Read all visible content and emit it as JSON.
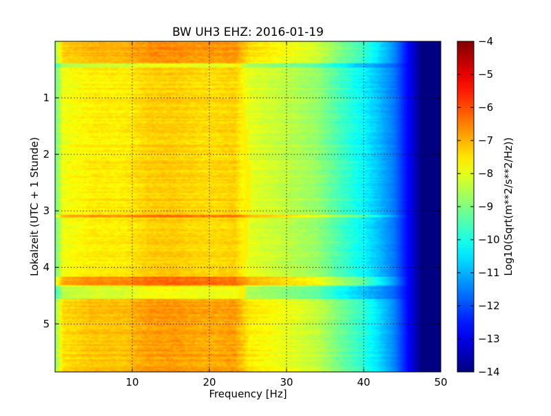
{
  "chart_data": {
    "type": "heatmap",
    "title": "BW UH3 EHZ: 2016-01-19",
    "xlabel": "Frequency [Hz]",
    "ylabel": "Lokalzeit (UTC + 1 Stunde)",
    "xlim": [
      0,
      50
    ],
    "ylim": [
      5.85,
      0
    ],
    "x_ticks": [
      10,
      20,
      30,
      40,
      50
    ],
    "y_ticks": [
      1,
      2,
      3,
      4,
      5
    ],
    "grid": true,
    "colormap": "jet",
    "colorbar": {
      "label": "Log10(Sqrt(m**2/s**2/Hz))",
      "range": [
        -14,
        -4
      ],
      "ticks": [
        -4,
        -5,
        -6,
        -7,
        -8,
        -9,
        -10,
        -11,
        -12,
        -13,
        -14
      ]
    },
    "baseline_spectrum": {
      "freq_hz": [
        0,
        1,
        5,
        9,
        12,
        15,
        19,
        21,
        23.3,
        25,
        30,
        34,
        37,
        40,
        42,
        44,
        46,
        47.5,
        50
      ],
      "value": [
        -9.3,
        -7.9,
        -7.6,
        -7.6,
        -7.3,
        -7.25,
        -7.4,
        -7.4,
        -7.3,
        -8.0,
        -8.4,
        -8.8,
        -9.6,
        -10.3,
        -10.9,
        -11.6,
        -12.9,
        -14,
        -14
      ]
    },
    "events": [
      {
        "start": 0.0,
        "end": 0.38,
        "delta": 0.55
      },
      {
        "start": 3.06,
        "end": 3.12,
        "delta": 0.9
      },
      {
        "start": 4.16,
        "end": 4.31,
        "delta": 1.0
      },
      {
        "start": 4.57,
        "end": 5.85,
        "delta": 0.45
      }
    ],
    "quiet_bands": [
      {
        "start": 0.38,
        "end": 0.46,
        "delta": -0.6
      },
      {
        "start": 4.34,
        "end": 4.55,
        "delta": -0.5
      }
    ],
    "narrowband_line_hz": [
      23.3,
      24.4,
      25.0,
      24.6,
      23.6
    ],
    "narrowband_line_time": [
      0,
      1.4,
      2.5,
      3.6,
      5.85
    ]
  }
}
